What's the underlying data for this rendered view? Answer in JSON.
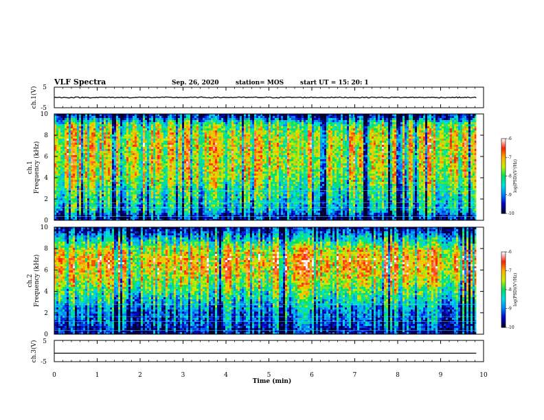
{
  "header": {
    "title": "VLF Spectra",
    "date": "Sep. 26, 2020",
    "station": "station= MOS",
    "start": "start  UT =   15: 20: 1"
  },
  "chart_data": [
    {
      "type": "line",
      "panel": "ch1_voltage",
      "ylabel": "ch.1(V)",
      "ylim": [
        -5,
        5
      ],
      "yticks": [
        "5",
        "-5"
      ],
      "x": [
        0,
        2,
        4,
        6,
        8,
        9.83
      ],
      "values": [
        0,
        0,
        0,
        0,
        0,
        0
      ]
    },
    {
      "type": "heatmap",
      "panel": "ch1_spectrogram",
      "ylabel": "ch.1\nFrequency (kHz)",
      "ylim": [
        0,
        10
      ],
      "yticks": [
        "0",
        "2",
        "4",
        "6",
        "8",
        "10"
      ],
      "xlim": [
        0,
        10
      ],
      "x_end": 9.83,
      "colorbar": {
        "label": "log(PSD)(V²/Hz)",
        "range": [
          -10,
          -6
        ],
        "ticks": [
          "-6",
          "-7",
          "-8",
          "-9",
          "-10"
        ]
      },
      "intensity_profile": [
        {
          "freq_khz": 0.3,
          "level": -9.6
        },
        {
          "freq_khz": 1,
          "level": -8.6
        },
        {
          "freq_khz": 2,
          "level": -8.4
        },
        {
          "freq_khz": 3,
          "level": -8.1
        },
        {
          "freq_khz": 4,
          "level": -7.7
        },
        {
          "freq_khz": 5,
          "level": -7.5
        },
        {
          "freq_khz": 6,
          "level": -7.5
        },
        {
          "freq_khz": 7,
          "level": -7.4
        },
        {
          "freq_khz": 8,
          "level": -7.5
        },
        {
          "freq_khz": 9,
          "level": -8.0
        },
        {
          "freq_khz": 9.8,
          "level": -9.6
        }
      ]
    },
    {
      "type": "heatmap",
      "panel": "ch2_spectrogram",
      "ylabel": "ch.2\nFrequency (kHz)",
      "ylim": [
        0,
        10
      ],
      "yticks": [
        "0",
        "2",
        "4",
        "6",
        "8",
        "10"
      ],
      "xlim": [
        0,
        10
      ],
      "x_end": 9.83,
      "colorbar": {
        "label": "log(PSD)(V²/Hz)",
        "range": [
          -10,
          -6
        ],
        "ticks": [
          "-6",
          "-7",
          "-8",
          "-9",
          "-10"
        ]
      },
      "intensity_profile": [
        {
          "freq_khz": 0.3,
          "level": -9.6
        },
        {
          "freq_khz": 1,
          "level": -9.2
        },
        {
          "freq_khz": 2,
          "level": -9.0
        },
        {
          "freq_khz": 3,
          "level": -8.5
        },
        {
          "freq_khz": 4,
          "level": -8.0
        },
        {
          "freq_khz": 5,
          "level": -7.5
        },
        {
          "freq_khz": 6,
          "level": -7.1
        },
        {
          "freq_khz": 7,
          "level": -7.0
        },
        {
          "freq_khz": 8,
          "level": -7.5
        },
        {
          "freq_khz": 9,
          "level": -8.6
        },
        {
          "freq_khz": 9.8,
          "level": -9.6
        }
      ]
    },
    {
      "type": "line",
      "panel": "ch3_voltage",
      "ylabel": "ch.3(V)",
      "ylim": [
        -5,
        5
      ],
      "yticks": [
        "5",
        "-5"
      ],
      "x": [
        0,
        2,
        4,
        6,
        8,
        9.83
      ],
      "values": [
        -1,
        -1,
        -1,
        -1,
        -1,
        -1
      ]
    }
  ],
  "x_axis": {
    "label": "Time (min)",
    "range": [
      0,
      10
    ],
    "ticks": [
      "0",
      "1",
      "2",
      "3",
      "4",
      "5",
      "6",
      "7",
      "8",
      "9",
      "10"
    ]
  },
  "colors": {
    "colormap": [
      "#000033",
      "#0000c8",
      "#0088ff",
      "#00e0e0",
      "#00e060",
      "#c8f000",
      "#ffb400",
      "#ff2000",
      "#ffffff"
    ]
  }
}
